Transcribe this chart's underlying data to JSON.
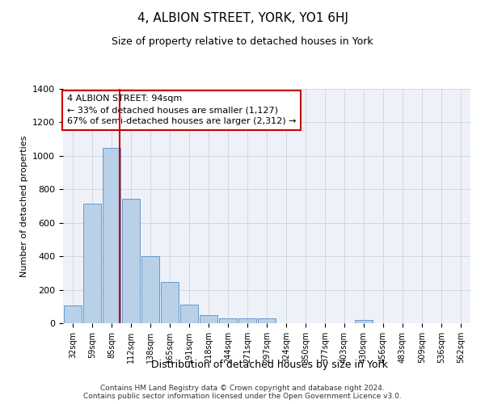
{
  "title": "4, ALBION STREET, YORK, YO1 6HJ",
  "subtitle": "Size of property relative to detached houses in York",
  "xlabel": "Distribution of detached houses by size in York",
  "ylabel": "Number of detached properties",
  "footer_line1": "Contains HM Land Registry data © Crown copyright and database right 2024.",
  "footer_line2": "Contains public sector information licensed under the Open Government Licence v3.0.",
  "annotation_title": "4 ALBION STREET: 94sqm",
  "annotation_line2": "← 33% of detached houses are smaller (1,127)",
  "annotation_line3": "67% of semi-detached houses are larger (2,312) →",
  "bar_color": "#b8d0e8",
  "bar_edge_color": "#6699cc",
  "vline_color": "#cc0000",
  "background_color": "#eef2f8",
  "grid_color": "#c8d4e4",
  "categories": [
    "32sqm",
    "59sqm",
    "85sqm",
    "112sqm",
    "138sqm",
    "165sqm",
    "191sqm",
    "218sqm",
    "244sqm",
    "271sqm",
    "297sqm",
    "324sqm",
    "350sqm",
    "377sqm",
    "403sqm",
    "430sqm",
    "456sqm",
    "483sqm",
    "509sqm",
    "536sqm",
    "562sqm"
  ],
  "values": [
    105,
    715,
    1048,
    745,
    400,
    245,
    110,
    50,
    30,
    30,
    30,
    0,
    0,
    0,
    0,
    18,
    0,
    0,
    0,
    0,
    0
  ],
  "ylim": [
    0,
    1400
  ],
  "yticks": [
    0,
    200,
    400,
    600,
    800,
    1000,
    1200,
    1400
  ],
  "vline_x_idx": 2.43
}
